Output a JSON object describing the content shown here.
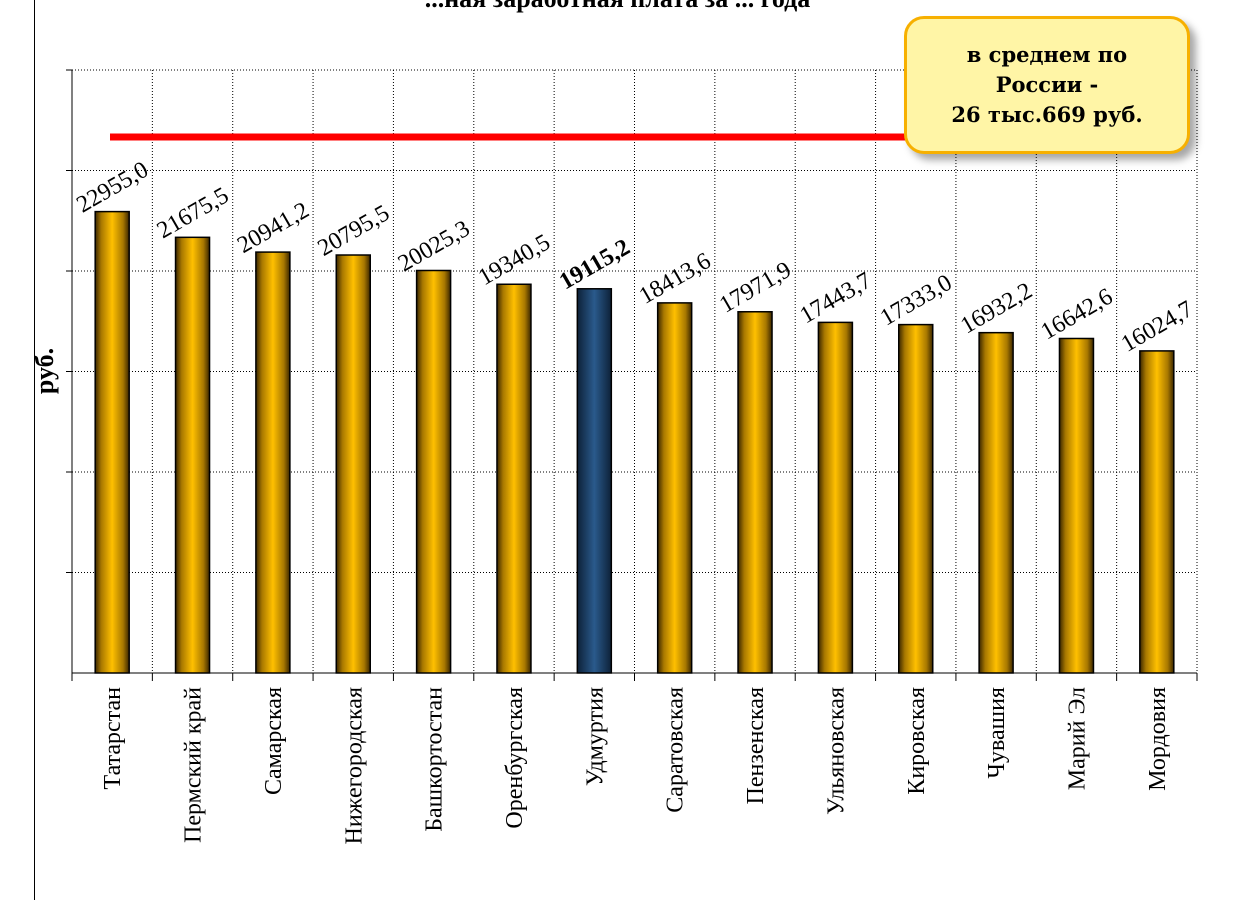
{
  "chart_data": {
    "type": "bar",
    "title": "...ная заработная плата за ... года",
    "ylabel": "руб.",
    "categories": [
      "Татарстан",
      "Пермский край",
      "Самарская",
      "Нижегородская",
      "Башкортостан",
      "Оренбургская",
      "Удмуртия",
      "Саратовская",
      "Пензенская",
      "Ульяновская",
      "Кировская",
      "Чувашия",
      "Марий Эл",
      "Мордовия"
    ],
    "values": [
      22955.0,
      21675.5,
      20941.2,
      20795.5,
      20025.3,
      19340.5,
      19115.2,
      18413.6,
      17971.9,
      17443.7,
      17333.0,
      16932.2,
      16642.6,
      16024.7
    ],
    "value_labels": [
      "22955,0",
      "21675,5",
      "20941,2",
      "20795,5",
      "20025,3",
      "19340,5",
      "19115,2",
      "18413,6",
      "17971,9",
      "17443,7",
      "17333,0",
      "16932,2",
      "16642,6",
      "16024,7"
    ],
    "highlight_category": "Удмуртия",
    "ylim": [
      0,
      30000
    ],
    "y_gridlines": [
      5000,
      10000,
      15000,
      20000,
      25000,
      30000
    ],
    "reference_line": {
      "value": 26669,
      "color": "#ff0000"
    },
    "grid": true,
    "colors": {
      "bar": "#ffc000",
      "highlight": "#1f4e79",
      "reference": "#ff0000",
      "callout_bg": "#fff5a6",
      "callout_border": "#f7b000"
    }
  },
  "callout": {
    "text": "в среднем по\nРоссии -\n26 тыс.669 руб."
  }
}
